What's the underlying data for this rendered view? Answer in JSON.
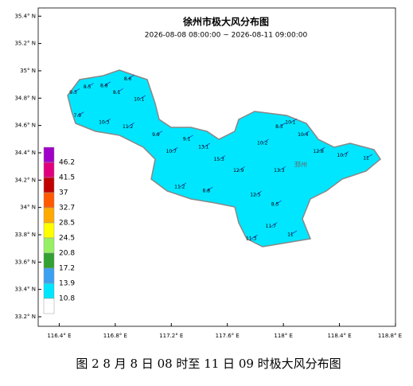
{
  "title": "徐州市极大风分布图",
  "subtitle": "2026-08-08 08:00:00 ~ 2026-08-11 09:00:00",
  "caption": "图 2   8 月 8 日 08 时至 11 日 09 时极大风分布图",
  "place_label": "邳州",
  "map": {
    "xlim": [
      116.25,
      118.8
    ],
    "ylim": [
      33.13,
      35.46
    ],
    "xticks": [
      {
        "value": 116.4,
        "label": "116.4° E"
      },
      {
        "value": 116.8,
        "label": "116.8° E"
      },
      {
        "value": 117.2,
        "label": "117.2° E"
      },
      {
        "value": 117.6,
        "label": "117.6° E"
      },
      {
        "value": 118,
        "label": "118° E"
      },
      {
        "value": 118.4,
        "label": "118.4° E"
      },
      {
        "value": 118.8,
        "label": "118.8° E"
      }
    ],
    "yticks": [
      {
        "value": 35.4,
        "label": "35.4° N"
      },
      {
        "value": 35.2,
        "label": "35.2° N"
      },
      {
        "value": 35,
        "label": "35° N"
      },
      {
        "value": 34.8,
        "label": "34.8° N"
      },
      {
        "value": 34.6,
        "label": "34.6° N"
      },
      {
        "value": 34.4,
        "label": "34.4° N"
      },
      {
        "value": 34.2,
        "label": "34.2° N"
      },
      {
        "value": 34,
        "label": "34° N"
      },
      {
        "value": 33.8,
        "label": "33.8° N"
      },
      {
        "value": 33.6,
        "label": "33.6° N"
      },
      {
        "value": 33.4,
        "label": "33.4° N"
      },
      {
        "value": 33.2,
        "label": "33.2° N"
      }
    ],
    "stations": [
      {
        "lon": 116.5,
        "lat": 34.84,
        "value": 9.3
      },
      {
        "lon": 116.6,
        "lat": 34.88,
        "value": 8.5
      },
      {
        "lon": 116.72,
        "lat": 34.89,
        "value": 8.8
      },
      {
        "lon": 116.81,
        "lat": 34.84,
        "value": 8.1
      },
      {
        "lon": 116.89,
        "lat": 34.94,
        "value": 8.6
      },
      {
        "lon": 116.97,
        "lat": 34.79,
        "value": 10.1
      },
      {
        "lon": 116.53,
        "lat": 34.67,
        "value": 7.9
      },
      {
        "lon": 116.72,
        "lat": 34.62,
        "value": 10.3
      },
      {
        "lon": 116.89,
        "lat": 34.59,
        "value": 11.2
      },
      {
        "lon": 117.09,
        "lat": 34.53,
        "value": 9.9
      },
      {
        "lon": 117.2,
        "lat": 34.41,
        "value": 10.7
      },
      {
        "lon": 117.31,
        "lat": 34.5,
        "value": 9.1
      },
      {
        "lon": 117.43,
        "lat": 34.44,
        "value": 13.1
      },
      {
        "lon": 117.54,
        "lat": 34.35,
        "value": 15.3
      },
      {
        "lon": 117.68,
        "lat": 34.27,
        "value": 12.9
      },
      {
        "lon": 117.85,
        "lat": 34.47,
        "value": 10.2
      },
      {
        "lon": 117.97,
        "lat": 34.59,
        "value": 8.3
      },
      {
        "lon": 118.05,
        "lat": 34.62,
        "value": 10.1
      },
      {
        "lon": 118.14,
        "lat": 34.53,
        "value": 10.4
      },
      {
        "lon": 118.25,
        "lat": 34.41,
        "value": 12.8
      },
      {
        "lon": 118.42,
        "lat": 34.38,
        "value": 10.7
      },
      {
        "lon": 118.59,
        "lat": 34.36,
        "value": 11.0
      },
      {
        "lon": 117.97,
        "lat": 34.27,
        "value": 13.3
      },
      {
        "lon": 117.8,
        "lat": 34.09,
        "value": 12.5
      },
      {
        "lon": 117.94,
        "lat": 34.02,
        "value": 8.5
      },
      {
        "lon": 117.91,
        "lat": 33.86,
        "value": 11.7
      },
      {
        "lon": 117.77,
        "lat": 33.77,
        "value": 11.3
      },
      {
        "lon": 118.05,
        "lat": 33.8,
        "value": 11.0
      },
      {
        "lon": 117.26,
        "lat": 34.15,
        "value": 11.2
      },
      {
        "lon": 117.45,
        "lat": 34.12,
        "value": 8.8
      }
    ]
  },
  "legend": {
    "colors": [
      "#a000c8",
      "#e0007f",
      "#c00000",
      "#ff5a00",
      "#ffaa00",
      "#ffff00",
      "#96f064",
      "#32a032",
      "#3ca0f0",
      "#00e6ff",
      "#ffffff"
    ],
    "labels": [
      46.2,
      41.5,
      37,
      32.7,
      28.5,
      24.5,
      20.8,
      17.2,
      13.9,
      10.8
    ]
  }
}
